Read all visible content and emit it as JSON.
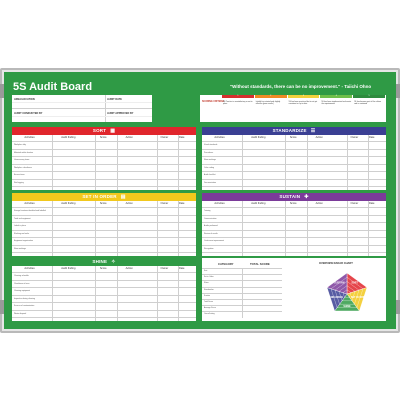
{
  "board": {
    "title": "5S Audit Board",
    "quote": "\"Without standards, there can be no improvement.\" - Taiichi Ohno"
  },
  "info": {
    "area_location": "AREA/LOCATION",
    "audit_date": "AUDIT DATE",
    "audit_conducted_by": "AUDIT CONDUCTED BY",
    "audit_approved_by": "AUDIT APPROVED BY"
  },
  "criteria": {
    "label": "SCORING CRITERIA",
    "levels": [
      {
        "num": "1",
        "color": "#d62f2f",
        "text": "5S Practice is unsatisfactory or not in place"
      },
      {
        "num": "2",
        "color": "#ef8a25",
        "text": "Initially has started and slightly effective (poor results)"
      },
      {
        "num": "3",
        "color": "#f2d13b",
        "text": "5S has been practiced but is not yet consistent or up to date"
      },
      {
        "num": "4",
        "color": "#6fbf4a",
        "text": "5S has been implemented and meets the requirements"
      },
      {
        "num": "5",
        "color": "#2e8b3e",
        "text": "5S has become part of the culture and is sustained"
      }
    ]
  },
  "columns": {
    "activities": "Activities",
    "finding": "Audit finding",
    "score": "Score",
    "action": "Action",
    "owner": "Owner",
    "date": "Date"
  },
  "sections": [
    {
      "key": "sort",
      "label": "SORT",
      "color": "#e0262c",
      "icon": "▦",
      "rows": [
        "Workplace tidy",
        "Materials within location",
        "Unnecessary items",
        "Workplace cleanliness",
        "Excess items",
        "Red tagging"
      ]
    },
    {
      "key": "standardize",
      "label": "STANDARDIZE",
      "color": "#3a3f93",
      "icon": "☰",
      "rows": [
        "Visual standards",
        "Procedures",
        "Floor markings",
        "Color coding",
        "Audit checklist",
        "Documentation"
      ]
    },
    {
      "key": "set_in_order",
      "label": "SET IN ORDER",
      "color": "#f2c81d",
      "icon": "▤",
      "rows": [
        "Storage locations identified and labelled",
        "Tools and equipment",
        "Labels in place",
        "Shelving and racks",
        "Equipment organisation",
        "Floor markings"
      ]
    },
    {
      "key": "sustain",
      "label": "SUSTAIN",
      "color": "#7b3b9a",
      "icon": "✚",
      "rows": [
        "Training",
        "Communication",
        "Audits performed",
        "Review of results",
        "Continuous improvement",
        "Recognition"
      ]
    },
    {
      "key": "shine",
      "label": "SHINE",
      "color": "#2f9a45",
      "icon": "✧",
      "rows": [
        "Cleaning schedule",
        "Cleanliness of area",
        "Cleaning equipment",
        "Inspection during cleaning",
        "Sources of contamination",
        "Waste disposal"
      ]
    }
  ],
  "overview": {
    "category": "CATEGORY",
    "total": "TOTAL SCORE",
    "chart_title": "OVERVIEW RADAR CHART",
    "rows": [
      "Sort",
      "Set in Order",
      "Shine",
      "Standardize",
      "Sustain",
      "Total Score",
      "Average Score",
      "Overall rating"
    ],
    "labels": [
      "SORT",
      "SET IN ORDER",
      "SHINE",
      "STANDARDIZE",
      "SUSTAIN"
    ]
  }
}
